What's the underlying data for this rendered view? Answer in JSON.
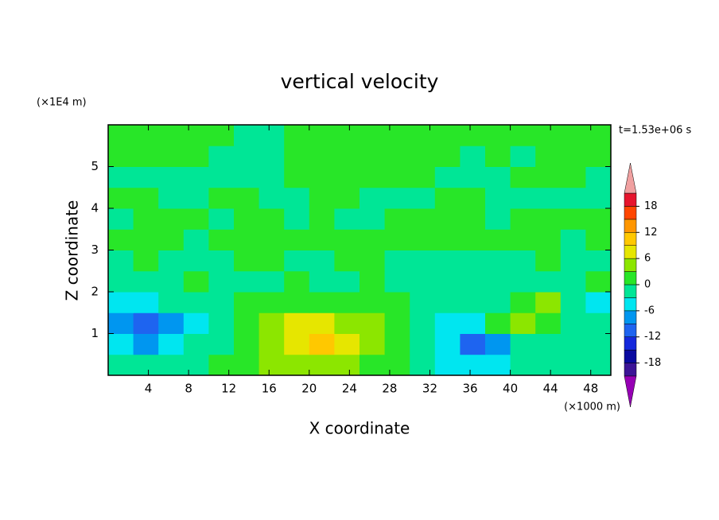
{
  "chart_data": {
    "type": "contourf",
    "title": "vertical velocity",
    "x_label": "X coordinate",
    "y_label": "Z coordinate",
    "x_unit": "(×1000 m)",
    "y_unit": "(×1E4 m)",
    "annotation": "t=1.53e+06 s",
    "xlim": [
      0,
      50
    ],
    "ylim": [
      0,
      6
    ],
    "xticks": [
      4,
      8,
      12,
      16,
      20,
      24,
      28,
      32,
      36,
      40,
      44,
      48
    ],
    "yticks": [
      1,
      2,
      3,
      4,
      5
    ],
    "x": [
      1.25,
      3.75,
      6.25,
      8.75,
      11.25,
      13.75,
      16.25,
      18.75,
      21.25,
      23.75,
      26.25,
      28.75,
      31.25,
      33.75,
      36.25,
      38.75,
      41.25,
      43.75,
      46.25,
      48.75
    ],
    "y": [
      0.25,
      0.75,
      1.25,
      1.75,
      2.25,
      2.75,
      3.25,
      3.75,
      4.25,
      4.75,
      5.25,
      5.75
    ],
    "z": [
      [
        -1.5,
        -1.5,
        -1.5,
        -1.5,
        1.5,
        1.5,
        4.5,
        4.5,
        4.5,
        4.5,
        1.5,
        1.5,
        -1.5,
        -4.5,
        -4.5,
        -4.5,
        -1.5,
        -1.5,
        -1.5,
        -1.5
      ],
      [
        -4.5,
        -7.5,
        -4.5,
        -1.5,
        -1.5,
        1.5,
        4.5,
        7.5,
        10.5,
        7.5,
        4.5,
        1.5,
        -1.5,
        -4.5,
        -10.5,
        -7.5,
        -1.5,
        -1.5,
        -1.5,
        -1.5
      ],
      [
        -7.5,
        -10.5,
        -7.5,
        -4.5,
        -1.5,
        1.5,
        4.5,
        7.5,
        7.5,
        4.5,
        4.5,
        1.5,
        -1.5,
        -4.5,
        -4.5,
        1.5,
        4.5,
        1.5,
        -1.5,
        -1.5
      ],
      [
        -4.5,
        -4.5,
        -1.5,
        -1.5,
        -1.5,
        1.5,
        1.5,
        1.5,
        1.5,
        1.5,
        1.5,
        1.5,
        -1.5,
        -1.5,
        -1.5,
        -1.5,
        1.5,
        4.5,
        -1.5,
        -4.5
      ],
      [
        -1.5,
        -1.5,
        -1.5,
        1.5,
        -1.5,
        -1.5,
        -1.5,
        1.5,
        -1.5,
        -1.5,
        1.5,
        -1.5,
        -1.5,
        -1.5,
        -1.5,
        -1.5,
        -1.5,
        -1.5,
        -1.5,
        1.5
      ],
      [
        -1.5,
        1.5,
        -1.5,
        -1.5,
        -1.5,
        1.5,
        1.5,
        -1.5,
        -1.5,
        1.5,
        1.5,
        -1.5,
        -1.5,
        -1.5,
        -1.5,
        -1.5,
        -1.5,
        1.5,
        -1.5,
        -1.5
      ],
      [
        1.5,
        1.5,
        1.5,
        -1.5,
        1.5,
        1.5,
        1.5,
        1.5,
        1.5,
        1.5,
        1.5,
        1.5,
        1.5,
        1.5,
        1.5,
        1.5,
        1.5,
        1.5,
        -1.5,
        1.5
      ],
      [
        -1.5,
        1.5,
        1.5,
        1.5,
        -1.5,
        1.5,
        1.5,
        -1.5,
        1.5,
        -1.5,
        -1.5,
        1.5,
        1.5,
        1.5,
        1.5,
        -1.5,
        1.5,
        1.5,
        1.5,
        1.5
      ],
      [
        1.5,
        1.5,
        -1.5,
        -1.5,
        1.5,
        1.5,
        -1.5,
        -1.5,
        1.5,
        1.5,
        -1.5,
        -1.5,
        -1.5,
        1.5,
        1.5,
        -1.5,
        -1.5,
        -1.5,
        -1.5,
        -1.5
      ],
      [
        -1.5,
        -1.5,
        -1.5,
        -1.5,
        -1.5,
        -1.5,
        -1.5,
        1.5,
        1.5,
        1.5,
        1.5,
        1.5,
        1.5,
        -1.5,
        -1.5,
        -1.5,
        1.5,
        1.5,
        1.5,
        -1.5
      ],
      [
        1.5,
        1.5,
        1.5,
        1.5,
        -1.5,
        -1.5,
        -1.5,
        1.5,
        1.5,
        1.5,
        1.5,
        1.5,
        1.5,
        1.5,
        -1.5,
        1.5,
        -1.5,
        1.5,
        1.5,
        1.5
      ],
      [
        1.5,
        1.5,
        1.5,
        1.5,
        1.5,
        -1.5,
        -1.5,
        1.5,
        1.5,
        1.5,
        1.5,
        1.5,
        1.5,
        1.5,
        1.5,
        1.5,
        1.5,
        1.5,
        1.5,
        1.5
      ]
    ],
    "levels": [
      -21,
      -18,
      -15,
      -12,
      -9,
      -6,
      -3,
      0,
      3,
      6,
      9,
      12,
      15,
      18,
      21
    ],
    "level_colors": [
      "#3c1496",
      "#0a0aa0",
      "#1428dc",
      "#1e64f0",
      "#0096f0",
      "#00e6f0",
      "#00e696",
      "#28e628",
      "#8ce600",
      "#e6e600",
      "#ffc800",
      "#ff9600",
      "#ff4600",
      "#e6142d"
    ],
    "under_color": "#9600b4",
    "over_color": "#f0a0a0",
    "colorbar_ticks": [
      18,
      12,
      6,
      0,
      -6,
      -12,
      -18
    ]
  }
}
